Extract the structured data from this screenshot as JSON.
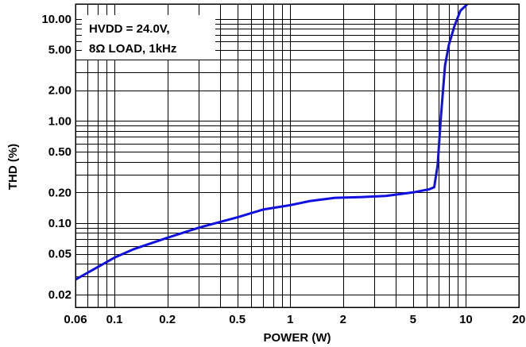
{
  "chart_data": {
    "type": "line",
    "title": "",
    "xlabel": "POWER (W)",
    "ylabel": "THD (%)",
    "x_scale": "log",
    "y_scale": "log",
    "xlim": [
      0.06,
      20
    ],
    "ylim": [
      0.015,
      14
    ],
    "grid": true,
    "x_ticks": [
      {
        "value": 0.06,
        "label": "0.06"
      },
      {
        "value": 0.1,
        "label": "0.1"
      },
      {
        "value": 0.2,
        "label": "0.2"
      },
      {
        "value": 0.5,
        "label": "0.5"
      },
      {
        "value": 1,
        "label": "1"
      },
      {
        "value": 2,
        "label": "2"
      },
      {
        "value": 5,
        "label": "5"
      },
      {
        "value": 10,
        "label": "10"
      },
      {
        "value": 20,
        "label": "20"
      }
    ],
    "y_ticks": [
      {
        "value": 0.02,
        "label": "0.02"
      },
      {
        "value": 0.05,
        "label": "0.05"
      },
      {
        "value": 0.1,
        "label": "0.10"
      },
      {
        "value": 0.2,
        "label": "0.20"
      },
      {
        "value": 0.5,
        "label": "0.50"
      },
      {
        "value": 1,
        "label": "1.00"
      },
      {
        "value": 2,
        "label": "2.00"
      },
      {
        "value": 5,
        "label": "5.00"
      },
      {
        "value": 10,
        "label": "10.00"
      }
    ],
    "annotation": [
      "HVDD = 24.0V,",
      "8Ω LOAD, 1kHz"
    ],
    "series": [
      {
        "color": "#1010e0",
        "x": [
          0.06,
          0.08,
          0.1,
          0.13,
          0.2,
          0.3,
          0.5,
          0.7,
          1.0,
          1.3,
          1.8,
          2.5,
          3.5,
          5.0,
          6.2,
          6.6,
          6.9,
          7.2,
          7.6,
          8.0,
          8.6,
          9.3,
          10.2
        ],
        "y": [
          0.028,
          0.037,
          0.046,
          0.056,
          0.072,
          0.09,
          0.114,
          0.136,
          0.15,
          0.165,
          0.177,
          0.18,
          0.185,
          0.2,
          0.215,
          0.225,
          0.37,
          1.1,
          3.5,
          5.6,
          8.5,
          12.0,
          14.0
        ]
      }
    ]
  }
}
